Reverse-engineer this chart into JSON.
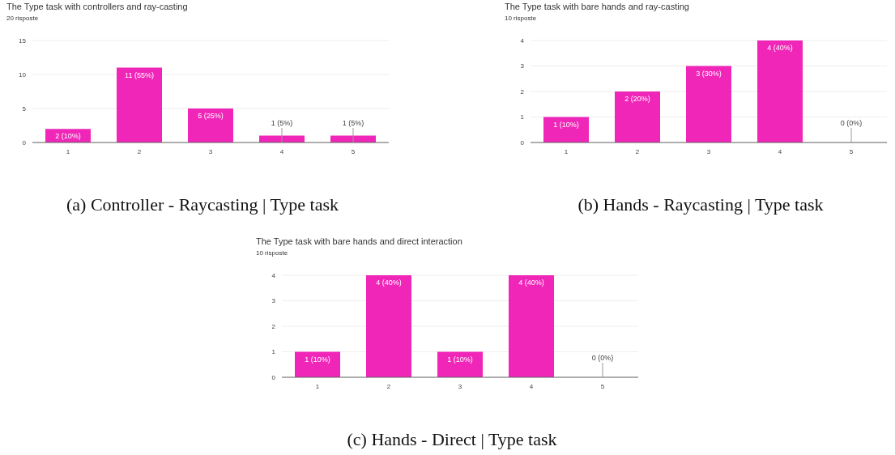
{
  "chart_data": [
    {
      "type": "bar",
      "title": "The Type task with controllers and ray-casting",
      "subtitle": "20 risposte",
      "categories": [
        "1",
        "2",
        "3",
        "4",
        "5"
      ],
      "values": [
        2,
        11,
        5,
        1,
        1
      ],
      "value_labels": [
        "2 (10%)",
        "11 (55%)",
        "5 (25%)",
        "1 (5%)",
        "1 (5%)"
      ],
      "color": "#f026b8",
      "ylim": [
        0,
        15
      ],
      "yticks": [
        0,
        5,
        10,
        15
      ],
      "grid": "y",
      "annotations": [
        "(a) Controller - Raycasting | Type task"
      ]
    },
    {
      "type": "bar",
      "title": "The Type task  with bare hands and ray-casting",
      "subtitle": "10 risposte",
      "categories": [
        "1",
        "2",
        "3",
        "4",
        "5"
      ],
      "values": [
        1,
        2,
        3,
        4,
        0
      ],
      "value_labels": [
        "1 (10%)",
        "2 (20%)",
        "3 (30%)",
        "4 (40%)",
        "0 (0%)"
      ],
      "color": "#f026b8",
      "ylim": [
        0,
        4
      ],
      "yticks": [
        0,
        1,
        2,
        3,
        4
      ],
      "grid": "y",
      "annotations": [
        "(b) Hands - Raycasting | Type task"
      ]
    },
    {
      "type": "bar",
      "title": "The Type task  with bare hands and direct interaction",
      "subtitle": "10 risposte",
      "categories": [
        "1",
        "2",
        "3",
        "4",
        "5"
      ],
      "values": [
        1,
        4,
        1,
        4,
        0
      ],
      "value_labels": [
        "1 (10%)",
        "4 (40%)",
        "1 (10%)",
        "4 (40%)",
        "0 (0%)"
      ],
      "color": "#f026b8",
      "ylim": [
        0,
        4
      ],
      "yticks": [
        0,
        1,
        2,
        3,
        4
      ],
      "grid": "y",
      "annotations": [
        "(c) Hands - Direct | Type task"
      ]
    }
  ]
}
